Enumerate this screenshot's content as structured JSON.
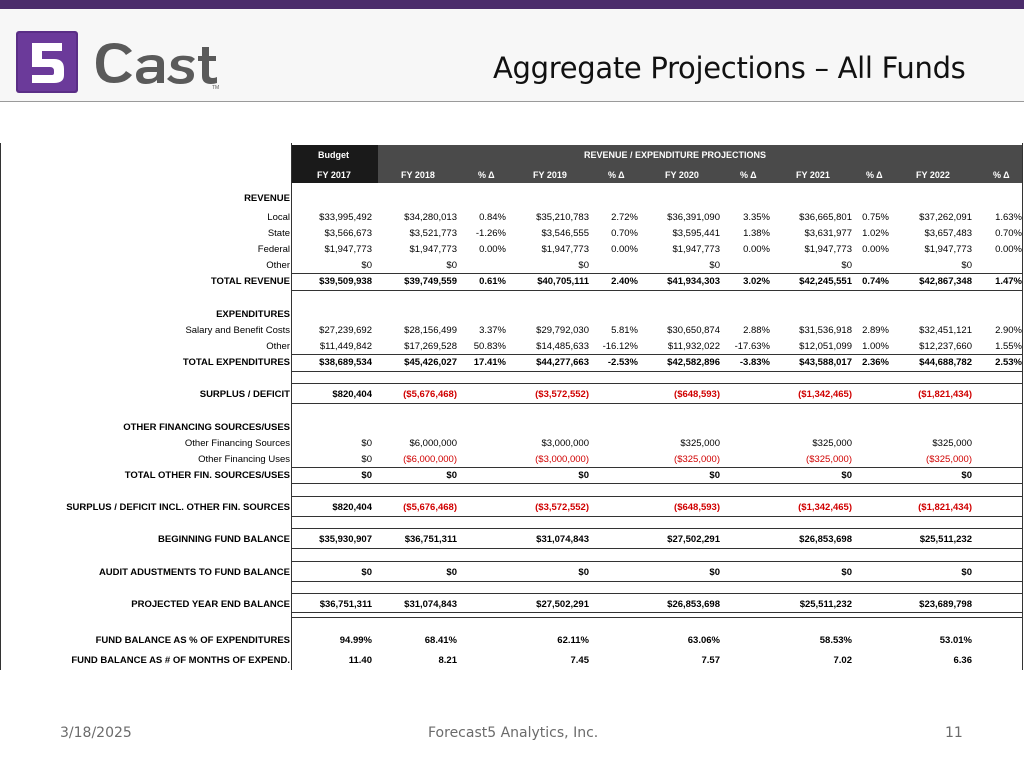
{
  "header": {
    "logo_text": "5 Cast",
    "title": "Aggregate Projections – All Funds"
  },
  "table": {
    "budget_label": "Budget",
    "projections_label": "REVENUE / EXPENDITURE PROJECTIONS",
    "columns": [
      "FY 2017",
      "FY 2018",
      "% Δ",
      "FY 2019",
      "% Δ",
      "FY 2020",
      "% Δ",
      "FY 2021",
      "% Δ",
      "FY 2022",
      "% Δ"
    ],
    "rows": [
      {
        "label": "REVENUE",
        "type": "section",
        "y": 0
      },
      {
        "label": "Local",
        "values": [
          "$33,995,492",
          "$34,280,013",
          "0.84%",
          "$35,210,783",
          "2.72%",
          "$36,391,090",
          "3.35%",
          "$36,665,801",
          "0.75%",
          "$37,262,091",
          "1.63%"
        ]
      },
      {
        "label": "State",
        "values": [
          "$3,566,673",
          "$3,521,773",
          "-1.26%",
          "$3,546,555",
          "0.70%",
          "$3,595,441",
          "1.38%",
          "$3,631,977",
          "1.02%",
          "$3,657,483",
          "0.70%"
        ]
      },
      {
        "label": "Federal",
        "values": [
          "$1,947,773",
          "$1,947,773",
          "0.00%",
          "$1,947,773",
          "0.00%",
          "$1,947,773",
          "0.00%",
          "$1,947,773",
          "0.00%",
          "$1,947,773",
          "0.00%"
        ]
      },
      {
        "label": "Other",
        "values": [
          "$0",
          "$0",
          "",
          "$0",
          "",
          "$0",
          "",
          "$0",
          "",
          "$0",
          ""
        ]
      },
      {
        "label": "TOTAL REVENUE",
        "bold": true,
        "values": [
          "$39,509,938",
          "$39,749,559",
          "0.61%",
          "$40,705,111",
          "2.40%",
          "$41,934,303",
          "3.02%",
          "$42,245,551",
          "0.74%",
          "$42,867,348",
          "1.47%"
        ]
      },
      {
        "label": "EXPENDITURES",
        "type": "section"
      },
      {
        "label": "Salary and Benefit Costs",
        "values": [
          "$27,239,692",
          "$28,156,499",
          "3.37%",
          "$29,792,030",
          "5.81%",
          "$30,650,874",
          "2.88%",
          "$31,536,918",
          "2.89%",
          "$32,451,121",
          "2.90%"
        ]
      },
      {
        "label": "Other",
        "values": [
          "$11,449,842",
          "$17,269,528",
          "50.83%",
          "$14,485,633",
          "-16.12%",
          "$11,932,022",
          "-17.63%",
          "$12,051,099",
          "1.00%",
          "$12,237,660",
          "1.55%"
        ]
      },
      {
        "label": "TOTAL EXPENDITURES",
        "bold": true,
        "values": [
          "$38,689,534",
          "$45,426,027",
          "17.41%",
          "$44,277,663",
          "-2.53%",
          "$42,582,896",
          "-3.83%",
          "$43,588,017",
          "2.36%",
          "$44,688,782",
          "2.53%"
        ]
      },
      {
        "label": "SURPLUS / DEFICIT",
        "bold": true,
        "values": [
          "$820,404",
          "($5,676,468)",
          "",
          "($3,572,552)",
          "",
          "($648,593)",
          "",
          "($1,342,465)",
          "",
          "($1,821,434)",
          ""
        ]
      },
      {
        "label": "OTHER FINANCING SOURCES/USES",
        "type": "section"
      },
      {
        "label": "Other Financing Sources",
        "values": [
          "$0",
          "$6,000,000",
          "",
          "$3,000,000",
          "",
          "$325,000",
          "",
          "$325,000",
          "",
          "$325,000",
          ""
        ]
      },
      {
        "label": "Other Financing Uses",
        "values": [
          "$0",
          "($6,000,000)",
          "",
          "($3,000,000)",
          "",
          "($325,000)",
          "",
          "($325,000)",
          "",
          "($325,000)",
          ""
        ]
      },
      {
        "label": "TOTAL OTHER FIN. SOURCES/USES",
        "bold": true,
        "values": [
          "$0",
          "$0",
          "",
          "$0",
          "",
          "$0",
          "",
          "$0",
          "",
          "$0",
          ""
        ]
      },
      {
        "label": "SURPLUS / DEFICIT INCL. OTHER FIN. SOURCES",
        "bold": true,
        "values": [
          "$820,404",
          "($5,676,468)",
          "",
          "($3,572,552)",
          "",
          "($648,593)",
          "",
          "($1,342,465)",
          "",
          "($1,821,434)",
          ""
        ]
      },
      {
        "label": "BEGINNING FUND BALANCE",
        "bold": true,
        "values": [
          "$35,930,907",
          "$36,751,311",
          "",
          "$31,074,843",
          "",
          "$27,502,291",
          "",
          "$26,853,698",
          "",
          "$25,511,232",
          ""
        ]
      },
      {
        "label": "AUDIT ADUSTMENTS TO FUND BALANCE",
        "bold": true,
        "values": [
          "$0",
          "$0",
          "",
          "$0",
          "",
          "$0",
          "",
          "$0",
          "",
          "$0",
          ""
        ]
      },
      {
        "label": "PROJECTED YEAR END BALANCE",
        "bold": true,
        "values": [
          "$36,751,311",
          "$31,074,843",
          "",
          "$27,502,291",
          "",
          "$26,853,698",
          "",
          "$25,511,232",
          "",
          "$23,689,798",
          ""
        ]
      },
      {
        "label": "FUND BALANCE AS % OF EXPENDITURES",
        "bold": true,
        "values": [
          "94.99%",
          "68.41%",
          "",
          "62.11%",
          "",
          "63.06%",
          "",
          "58.53%",
          "",
          "53.01%",
          ""
        ]
      },
      {
        "label": "FUND BALANCE AS # OF MONTHS OF EXPEND.",
        "bold": true,
        "values": [
          "11.40",
          "8.21",
          "",
          "7.45",
          "",
          "7.57",
          "",
          "7.02",
          "",
          "6.36",
          ""
        ]
      }
    ]
  },
  "footer": {
    "date": "3/18/2025",
    "company": "Forecast5 Analytics, Inc.",
    "page": "11"
  }
}
